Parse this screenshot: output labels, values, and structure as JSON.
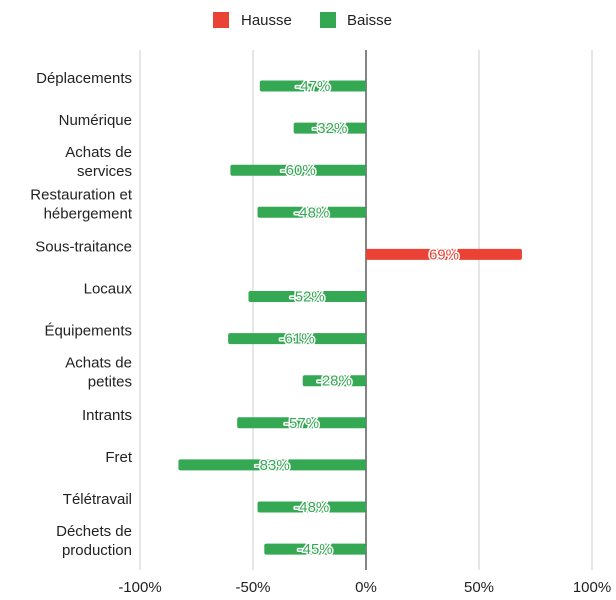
{
  "chart_data": {
    "type": "bar",
    "orientation": "horizontal",
    "categories": [
      "Déplacements",
      "Numérique",
      "Achats de services",
      "Restauration et hébergement",
      "Sous-traitance",
      "Locaux",
      "Équipements",
      "Achats de petites",
      "Intrants",
      "Fret",
      "Télétravail",
      "Déchets de production"
    ],
    "category_lines": [
      [
        "Déplacements"
      ],
      [
        "Numérique"
      ],
      [
        "Achats de",
        "services"
      ],
      [
        "Restauration et",
        "hébergement"
      ],
      [
        "Sous-traitance"
      ],
      [
        "Locaux"
      ],
      [
        "Équipements"
      ],
      [
        "Achats de",
        "petites"
      ],
      [
        "Intrants"
      ],
      [
        "Fret"
      ],
      [
        "Télétravail"
      ],
      [
        "Déchets de",
        "production"
      ]
    ],
    "values": [
      -47,
      -32,
      -60,
      -48,
      69,
      -52,
      -61,
      -28,
      -57,
      -83,
      -48,
      -45
    ],
    "data_labels": [
      "-47%",
      "-32%",
      "-60%",
      "-48%",
      "69%",
      "-52%",
      "-61%",
      "-28%",
      "-57%",
      "-83%",
      "-48%",
      "-45%"
    ],
    "series": [
      {
        "name": "Hausse",
        "color": "#ea4335"
      },
      {
        "name": "Baisse",
        "color": "#34a853"
      }
    ],
    "xlim": [
      -100,
      100
    ],
    "x_ticks": [
      -100,
      -50,
      0,
      50,
      100
    ],
    "x_tick_labels": [
      "-100%",
      "-50%",
      "0%",
      "50%",
      "100%"
    ],
    "gridlines": true,
    "legend_position": "top-center",
    "title": "",
    "xlabel": "",
    "ylabel": ""
  }
}
